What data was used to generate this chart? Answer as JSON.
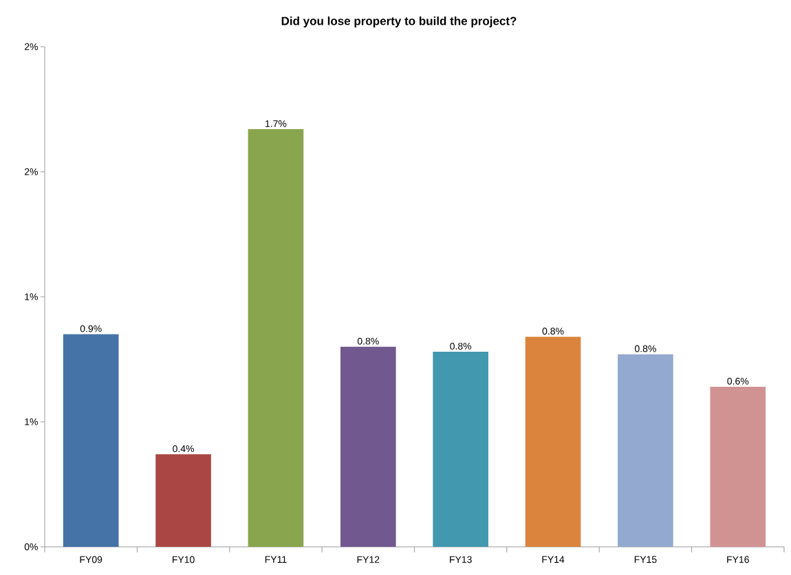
{
  "chart_data": {
    "type": "bar",
    "title": "Did you lose property to build the project?",
    "categories": [
      "FY09",
      "FY10",
      "FY11",
      "FY12",
      "FY13",
      "FY14",
      "FY15",
      "FY16"
    ],
    "values": [
      0.85,
      0.37,
      1.67,
      0.8,
      0.78,
      0.84,
      0.77,
      0.64
    ],
    "value_labels": [
      "0.9%",
      "0.4%",
      "1.7%",
      "0.8%",
      "0.8%",
      "0.8%",
      "0.8%",
      "0.6%"
    ],
    "colors": [
      "#4572a7",
      "#aa4643",
      "#89a54e",
      "#71588f",
      "#4198af",
      "#db843d",
      "#93a9cf",
      "#d19392"
    ],
    "ylim": [
      0,
      2
    ],
    "yticks": [
      {
        "value": 0,
        "label": "0%"
      },
      {
        "value": 0.5,
        "label": "1%"
      },
      {
        "value": 1,
        "label": "1%"
      },
      {
        "value": 1.5,
        "label": "2%"
      },
      {
        "value": 2,
        "label": "2%"
      }
    ]
  }
}
